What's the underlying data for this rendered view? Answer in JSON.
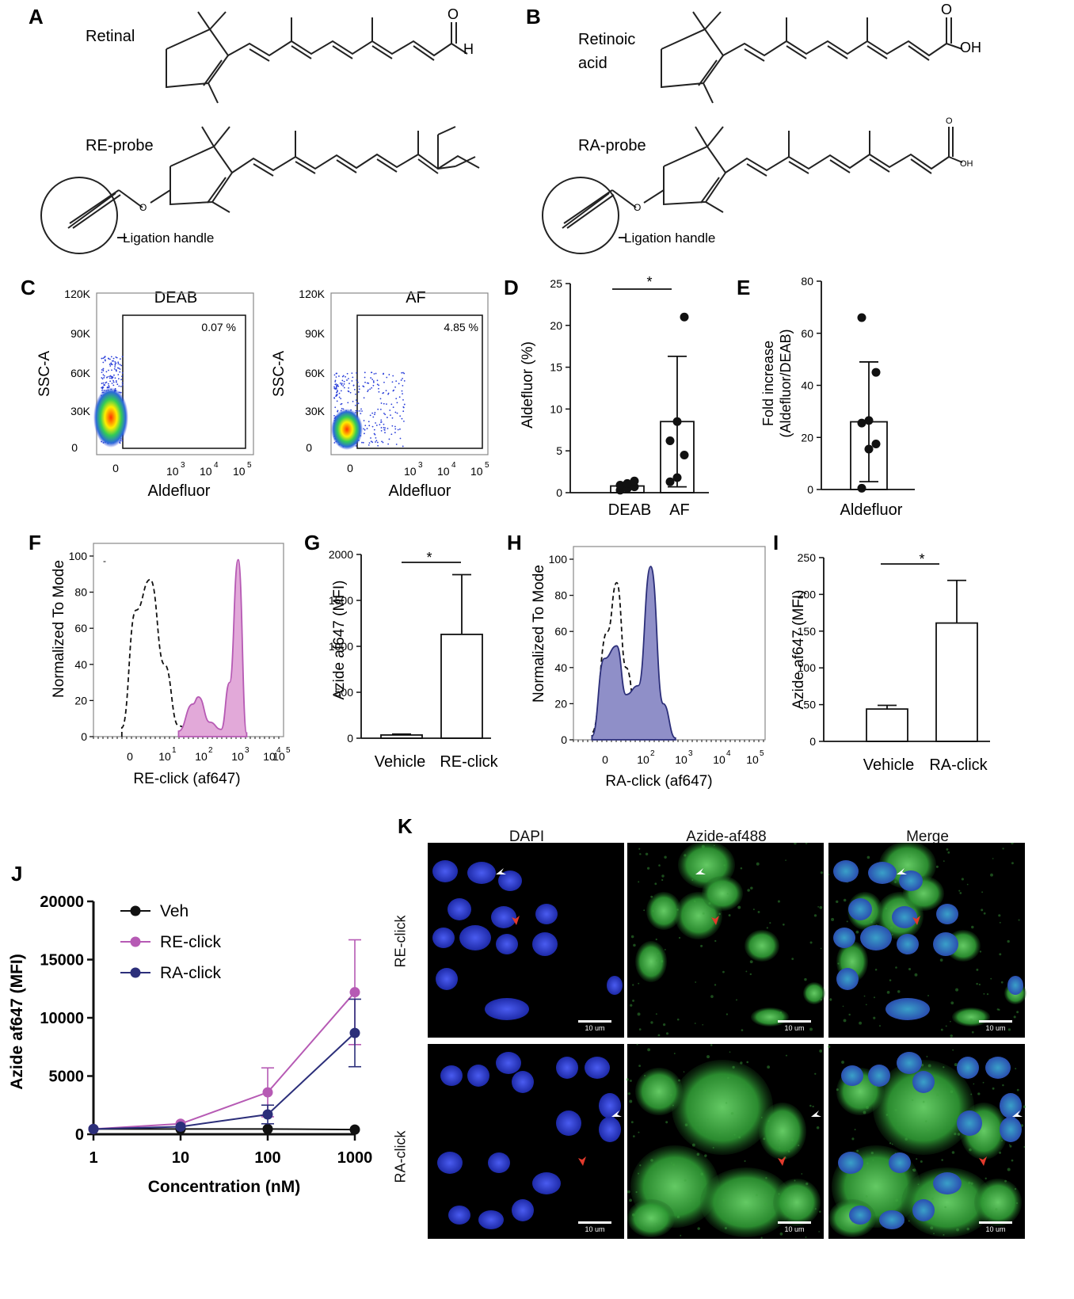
{
  "panel_letters": [
    "A",
    "B",
    "C",
    "D",
    "E",
    "F",
    "G",
    "H",
    "I",
    "J",
    "K"
  ],
  "structures": {
    "retinal": "Retinal",
    "retinal_o": "O",
    "retinal_h": "H",
    "retinoic_1": "Retinoic",
    "retinoic_2": "acid",
    "ra_o": "O",
    "ra_oh": "OH",
    "re_probe": "RE-probe",
    "ra_probe": "RA-probe",
    "re_probe_o": "O",
    "ra_probe_o": "O",
    "ra_probe_oh": "OH",
    "ligation_re": "Ligation handle",
    "ligation_ra": "Ligation handle"
  },
  "flow_c": {
    "plots": [
      {
        "title": "DEAB",
        "percent": "0.07 %",
        "ylabel": "SSC-A",
        "xlabel": "Aldefluor",
        "yticks": [
          "120K",
          "90K",
          "60K",
          "30K",
          "0"
        ],
        "xticks": [
          "0",
          "10",
          "10",
          "10"
        ],
        "xexp": [
          "3",
          "4",
          "5"
        ]
      },
      {
        "title": "AF",
        "percent": "4.85 %",
        "ylabel": "SSC-A",
        "xlabel": "Aldefluor",
        "yticks": [
          "120K",
          "90K",
          "60K",
          "30K",
          "0"
        ],
        "xticks": [
          "0",
          "10",
          "10",
          "10"
        ],
        "xexp": [
          "3",
          "4",
          "5"
        ]
      }
    ]
  },
  "panel_d": {
    "ylabel": "Aldefluor (%)",
    "yticks": [
      "0",
      "5",
      "10",
      "15",
      "20",
      "25"
    ],
    "sig": "*",
    "categories": [
      "DEAB",
      "AF"
    ]
  },
  "panel_e": {
    "ylabel_1": "Fold increase",
    "ylabel_2": "(Aldefluor/DEAB)",
    "yticks": [
      "0",
      "20",
      "40",
      "60",
      "80"
    ],
    "category": "Aldefluor"
  },
  "panel_f": {
    "ylabel": "Normalized To Mode",
    "xlabel": "RE-click (af647)",
    "yticks": [
      "0",
      "20",
      "40",
      "60",
      "80",
      "100"
    ],
    "xticks": [
      "0",
      "10",
      "10",
      "10",
      "10",
      "10"
    ],
    "xexp": [
      "1",
      "2",
      "3",
      "4",
      "5"
    ],
    "stray_mark": "-"
  },
  "panel_g": {
    "ylabel": "Azide af647 (MFI)",
    "yticks": [
      "0",
      "500",
      "1000",
      "1500",
      "2000"
    ],
    "sig": "*",
    "categories": [
      "Vehicle",
      "RE-click"
    ]
  },
  "panel_h": {
    "ylabel": "Normalized To Mode",
    "xlabel": "RA-click (af647)",
    "yticks": [
      "0",
      "20",
      "40",
      "60",
      "80",
      "100"
    ],
    "xticks": [
      "0",
      "10",
      "10",
      "10",
      "10"
    ],
    "xexp": [
      "2",
      "3",
      "4",
      "5"
    ]
  },
  "panel_i": {
    "ylabel": "Azide af647 (MFI)",
    "yticks": [
      "0",
      "50",
      "100",
      "150",
      "200",
      "250"
    ],
    "sig": "*",
    "categories": [
      "Vehicle",
      "RA-click"
    ]
  },
  "panel_j": {
    "ylabel": "Azide af647 (MFI)",
    "xlabel": "Concentration (nM)",
    "yticks": [
      "0",
      "5000",
      "10000",
      "15000",
      "20000"
    ],
    "xticks": [
      "1",
      "10",
      "100",
      "1000"
    ],
    "legend": [
      "Veh",
      "RE-click",
      "RA-click"
    ]
  },
  "panel_k": {
    "columns": [
      "DAPI",
      "Azide-af488",
      "Merge"
    ],
    "rows": [
      "RE-click",
      "RA-click"
    ],
    "scale_label": "10 um"
  },
  "colors": {
    "re": "#b65ab4",
    "re_fill": "#e2a9d9",
    "ra": "#2c2f7a",
    "ra_fill": "#8f8fc8",
    "veh": "#111111",
    "dapi": "#2433c8",
    "af488": "#4fc24f"
  },
  "chart_data": [
    {
      "panel": "C-DEAB",
      "type": "scatter",
      "title": "DEAB",
      "xlabel": "Aldefluor",
      "ylabel": "SSC-A",
      "ylim": [
        0,
        120000
      ],
      "x_ticks": [
        "0",
        "10^3",
        "10^4",
        "10^5"
      ],
      "gate_percent": 0.07
    },
    {
      "panel": "C-AF",
      "type": "scatter",
      "title": "AF",
      "xlabel": "Aldefluor",
      "ylabel": "SSC-A",
      "ylim": [
        0,
        120000
      ],
      "x_ticks": [
        "0",
        "10^3",
        "10^4",
        "10^5"
      ],
      "gate_percent": 4.85
    },
    {
      "panel": "D",
      "type": "bar",
      "categories": [
        "DEAB",
        "AF"
      ],
      "values": [
        0.8,
        8.5
      ],
      "error": [
        0.4,
        7.8
      ],
      "points": [
        [
          0.3,
          0.5,
          0.7,
          0.9,
          1.1,
          1.4
        ],
        [
          1.3,
          1.8,
          4.5,
          6.2,
          8.5,
          21.0
        ]
      ],
      "ylabel": "Aldefluor (%)",
      "ylim": [
        0,
        25
      ],
      "significance": "*"
    },
    {
      "panel": "E",
      "type": "bar",
      "categories": [
        "Aldefluor"
      ],
      "values": [
        26
      ],
      "error": [
        23
      ],
      "points": [
        [
          0.5,
          15.5,
          17.5,
          25.5,
          26.5,
          45,
          66
        ]
      ],
      "ylabel": "Fold increase (Aldefluor/DEAB)",
      "ylim": [
        0,
        80
      ]
    },
    {
      "panel": "F",
      "type": "area",
      "xlabel": "RE-click (af647)",
      "ylabel": "Normalized To Mode",
      "ylim": [
        0,
        100
      ],
      "series": [
        {
          "style": "dashed",
          "x": [
            -0.5,
            0,
            0.5,
            1,
            1.5,
            2
          ],
          "y": [
            5,
            70,
            87,
            40,
            6,
            1
          ]
        },
        {
          "style": "filled",
          "x": [
            1.5,
            2,
            2.2,
            2.6,
            3,
            3.3,
            3.6,
            3.9
          ],
          "y": [
            3,
            18,
            22,
            8,
            4,
            30,
            98,
            2
          ]
        }
      ]
    },
    {
      "panel": "G",
      "type": "bar",
      "categories": [
        "Vehicle",
        "RE-click"
      ],
      "values": [
        35,
        1130
      ],
      "error": [
        10,
        650
      ],
      "ylabel": "Azide af647 (MFI)",
      "ylim": [
        0,
        2000
      ],
      "significance": "*"
    },
    {
      "panel": "H",
      "type": "area",
      "xlabel": "RA-click (af647)",
      "ylabel": "Normalized To Mode",
      "ylim": [
        0,
        100
      ],
      "series": [
        {
          "style": "dashed",
          "x": [
            0,
            0.5,
            0.8,
            1.1,
            1.5,
            2
          ],
          "y": [
            4,
            60,
            87,
            40,
            6,
            1
          ]
        },
        {
          "style": "filled",
          "x": [
            0,
            0.4,
            0.8,
            1.1,
            1.5,
            1.9,
            2.3,
            2.7
          ],
          "y": [
            2,
            45,
            52,
            25,
            30,
            96,
            20,
            1
          ]
        }
      ]
    },
    {
      "panel": "I",
      "type": "bar",
      "categories": [
        "Vehicle",
        "RA-click"
      ],
      "values": [
        44,
        161
      ],
      "error": [
        5,
        58
      ],
      "ylabel": "Azide af647 (MFI)",
      "ylim": [
        0,
        250
      ],
      "significance": "*"
    },
    {
      "panel": "J",
      "type": "line",
      "x": [
        1,
        10,
        100,
        1000
      ],
      "xlabel": "Concentration (nM)",
      "ylabel": "Azide af647 (MFI)",
      "ylim": [
        0,
        20000
      ],
      "x_scale": "log",
      "series": [
        {
          "name": "Veh",
          "values": [
            450,
            450,
            450,
            400
          ],
          "error": [
            0,
            0,
            0,
            0
          ]
        },
        {
          "name": "RE-click",
          "values": [
            450,
            900,
            3600,
            12200
          ],
          "error": [
            0,
            0,
            2100,
            4500
          ]
        },
        {
          "name": "RA-click",
          "values": [
            450,
            650,
            1700,
            8700
          ],
          "error": [
            0,
            0,
            800,
            2900
          ]
        }
      ]
    }
  ]
}
